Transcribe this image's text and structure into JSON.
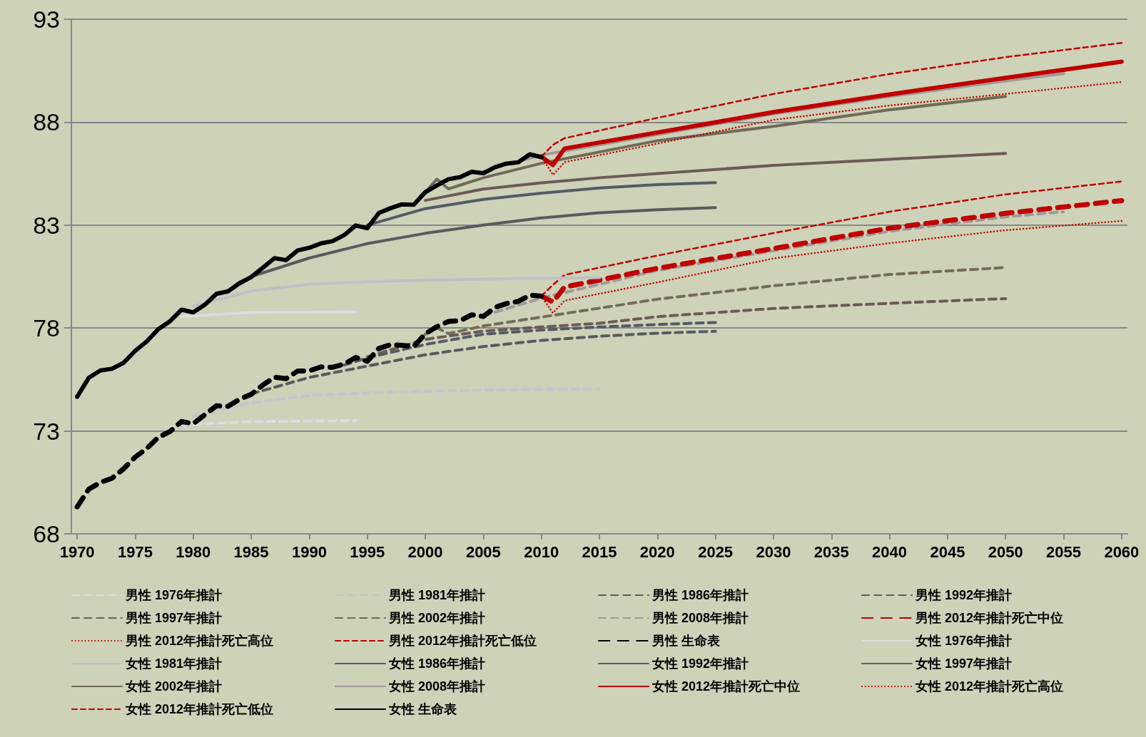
{
  "chart_data": {
    "type": "line",
    "xlim": [
      1969.5,
      2060.5
    ],
    "xticks": [
      1970,
      1975,
      1980,
      1985,
      1990,
      1995,
      2000,
      2005,
      2010,
      2015,
      2020,
      2025,
      2030,
      2035,
      2040,
      2045,
      2050,
      2055,
      2060
    ],
    "ylim": [
      68,
      93
    ],
    "yticks": [
      68,
      73,
      78,
      83,
      88,
      93
    ],
    "grid": "y",
    "legend": "bottom",
    "marker": "none",
    "series": [
      {
        "name": "男性 1976年推計",
        "color": "#dcdcdc",
        "line_style": "dashed",
        "x": [
          1979,
          1985,
          1994
        ],
        "values": [
          73.3,
          73.45,
          73.5
        ]
      },
      {
        "name": "男性 1981年推計",
        "color": "#c6c6ca",
        "line_style": "dashed",
        "x": [
          1980,
          1985,
          1990,
          1995,
          2000,
          2005,
          2010,
          2015
        ],
        "values": [
          73.7,
          74.37,
          74.72,
          74.85,
          74.93,
          74.98,
          75.02,
          75.05
        ]
      },
      {
        "name": "男性 1986年推計",
        "color": "#5a5a5a",
        "line_style": "dashed",
        "x": [
          1985,
          1990,
          1995,
          2000,
          2005,
          2010,
          2015,
          2020,
          2025
        ],
        "values": [
          74.8,
          75.6,
          76.15,
          76.7,
          77.1,
          77.4,
          77.6,
          77.75,
          77.84
        ]
      },
      {
        "name": "男性 1992年推計",
        "color": "#545b63",
        "line_style": "dashed",
        "x": [
          1993,
          1995,
          2000,
          2005,
          2010,
          2015,
          2020,
          2025
        ],
        "values": [
          76.2,
          76.55,
          77.2,
          77.7,
          77.9,
          78.05,
          78.17,
          78.27
        ]
      },
      {
        "name": "男性 1997年推計",
        "color": "#6b5a55",
        "line_style": "dashed",
        "x": [
          1995,
          2000,
          2005,
          2010,
          2015,
          2020,
          2030,
          2040,
          2050
        ],
        "values": [
          76.6,
          77.45,
          77.85,
          78.05,
          78.23,
          78.55,
          78.95,
          79.2,
          79.43
        ]
      },
      {
        "name": "男性 2002年推計",
        "color": "#736c58",
        "line_style": "dashed",
        "x": [
          2000,
          2001,
          2002,
          2005,
          2010,
          2020,
          2030,
          2040,
          2050
        ],
        "values": [
          77.7,
          78.0,
          77.73,
          78.1,
          78.53,
          79.4,
          80.05,
          80.6,
          80.94
        ]
      },
      {
        "name": "男性 2008年推計",
        "color": "#a09898",
        "line_style": "dashed",
        "x": [
          2005,
          2010,
          2020,
          2030,
          2040,
          2050,
          2055
        ],
        "values": [
          78.6,
          79.45,
          80.8,
          81.75,
          82.7,
          83.4,
          83.65
        ]
      },
      {
        "name": "男性 2012年推計死亡中位",
        "color": "#c00000",
        "line_style": "dashed",
        "x": [
          2010,
          2011,
          2012,
          2020,
          2030,
          2040,
          2050,
          2060
        ],
        "values": [
          79.55,
          79.27,
          79.99,
          80.9,
          81.86,
          82.85,
          83.57,
          84.19
        ]
      },
      {
        "name": "男性 2012年推計死亡高位",
        "color": "#c00000",
        "line_style": "dotted",
        "x": [
          2010,
          2011,
          2012,
          2020,
          2030,
          2040,
          2050,
          2060
        ],
        "values": [
          79.55,
          78.73,
          79.33,
          80.22,
          81.38,
          82.12,
          82.75,
          83.2
        ]
      },
      {
        "name": "男性 2012年推計死亡低位",
        "color": "#c00000",
        "line_style": "dashed",
        "x": [
          2010,
          2011,
          2012,
          2020,
          2030,
          2040,
          2050,
          2060
        ],
        "values": [
          79.55,
          80.1,
          80.58,
          81.52,
          82.61,
          83.65,
          84.49,
          85.12
        ]
      },
      {
        "name": "男性 生命表",
        "color": "#000000",
        "line_style": "dashed",
        "x": [
          1970,
          1971,
          1972,
          1973,
          1974,
          1975,
          1976,
          1977,
          1978,
          1979,
          1980,
          1981,
          1982,
          1983,
          1984,
          1985,
          1986,
          1987,
          1988,
          1989,
          1990,
          1991,
          1992,
          1993,
          1994,
          1995,
          1996,
          1997,
          1998,
          1999,
          2000,
          2001,
          2002,
          2003,
          2004,
          2005,
          2006,
          2007,
          2008,
          2009,
          2010
        ],
        "values": [
          69.31,
          70.17,
          70.5,
          70.7,
          71.16,
          71.73,
          72.15,
          72.69,
          72.97,
          73.46,
          73.35,
          73.79,
          74.22,
          74.2,
          74.54,
          74.78,
          75.23,
          75.61,
          75.54,
          75.91,
          75.92,
          76.11,
          76.09,
          76.25,
          76.57,
          76.38,
          77.01,
          77.19,
          77.16,
          77.1,
          77.72,
          78.07,
          78.32,
          78.36,
          78.64,
          78.56,
          79.0,
          79.19,
          79.29,
          79.59,
          79.55
        ]
      },
      {
        "name": "女性 1976年推計",
        "color": "#dcdcdc",
        "line_style": "solid",
        "x": [
          1979,
          1985,
          1994
        ],
        "values": [
          78.55,
          78.76,
          78.78
        ]
      },
      {
        "name": "女性 1981年推計",
        "color": "#c0c0c4",
        "line_style": "solid",
        "x": [
          1980,
          1985,
          1990,
          1995,
          2000,
          2005,
          2010,
          2015
        ],
        "values": [
          79.05,
          79.8,
          80.13,
          80.25,
          80.32,
          80.38,
          80.42,
          80.45
        ]
      },
      {
        "name": "女性 1986年推計",
        "color": "#5a5a5a",
        "line_style": "solid",
        "x": [
          1985,
          1990,
          1995,
          2000,
          2005,
          2010,
          2015,
          2020,
          2025
        ],
        "values": [
          80.5,
          81.4,
          82.1,
          82.6,
          83.0,
          83.35,
          83.6,
          83.75,
          83.85
        ]
      },
      {
        "name": "女性 1992年推計",
        "color": "#545b63",
        "line_style": "solid",
        "x": [
          1995,
          2000,
          2005,
          2010,
          2015,
          2020,
          2025
        ],
        "values": [
          83.0,
          83.8,
          84.25,
          84.55,
          84.8,
          84.97,
          85.06
        ]
      },
      {
        "name": "女性 1997年推計",
        "color": "#6b5a55",
        "line_style": "solid",
        "x": [
          2000,
          2005,
          2010,
          2015,
          2020,
          2030,
          2040,
          2050
        ],
        "values": [
          84.2,
          84.75,
          85.05,
          85.3,
          85.5,
          85.9,
          86.2,
          86.48
        ]
      },
      {
        "name": "女性 2002年推計",
        "color": "#6f6a58",
        "line_style": "solid",
        "x": [
          2000,
          2001,
          2002,
          2005,
          2010,
          2020,
          2030,
          2040,
          2050
        ],
        "values": [
          84.6,
          85.23,
          84.76,
          85.3,
          86.0,
          87.1,
          87.8,
          88.6,
          89.25
        ]
      },
      {
        "name": "女性 2008年推計",
        "color": "#a09898",
        "line_style": "solid",
        "x": [
          2008,
          2010,
          2020,
          2030,
          2040,
          2050,
          2055
        ],
        "values": [
          86.1,
          86.4,
          87.4,
          88.4,
          89.25,
          90.0,
          90.36
        ]
      },
      {
        "name": "女性 2012年推計死亡中位",
        "color": "#c00000",
        "line_style": "solid",
        "x": [
          2010,
          2011,
          2012,
          2020,
          2030,
          2040,
          2050,
          2060
        ],
        "values": [
          86.32,
          85.92,
          86.72,
          87.5,
          88.49,
          89.35,
          90.15,
          90.94
        ]
      },
      {
        "name": "女性 2012年推計死亡高位",
        "color": "#c00000",
        "line_style": "dotted",
        "x": [
          2010,
          2011,
          2012,
          2020,
          2030,
          2040,
          2050,
          2060
        ],
        "values": [
          86.32,
          85.44,
          86.06,
          86.96,
          88.11,
          88.81,
          89.37,
          89.95
        ]
      },
      {
        "name": "女性 2012年推計死亡低位",
        "color": "#c00000",
        "line_style": "dashed",
        "x": [
          2010,
          2011,
          2012,
          2020,
          2030,
          2040,
          2050,
          2060
        ],
        "values": [
          86.32,
          86.9,
          87.22,
          88.21,
          89.37,
          90.34,
          91.16,
          91.85
        ]
      },
      {
        "name": "女性 生命表",
        "color": "#000000",
        "line_style": "solid",
        "x": [
          1970,
          1971,
          1972,
          1973,
          1974,
          1975,
          1976,
          1977,
          1978,
          1979,
          1980,
          1981,
          1982,
          1983,
          1984,
          1985,
          1986,
          1987,
          1988,
          1989,
          1990,
          1991,
          1992,
          1993,
          1994,
          1995,
          1996,
          1997,
          1998,
          1999,
          2000,
          2001,
          2002,
          2003,
          2004,
          2005,
          2006,
          2007,
          2008,
          2009,
          2010
        ],
        "values": [
          74.66,
          75.58,
          75.94,
          76.02,
          76.31,
          76.89,
          77.35,
          77.95,
          78.33,
          78.89,
          78.76,
          79.13,
          79.66,
          79.78,
          80.18,
          80.48,
          80.93,
          81.39,
          81.3,
          81.77,
          81.9,
          82.11,
          82.22,
          82.51,
          82.98,
          82.85,
          83.59,
          83.82,
          84.01,
          83.99,
          84.6,
          84.93,
          85.23,
          85.33,
          85.59,
          85.52,
          85.81,
          85.99,
          86.05,
          86.44,
          86.3
        ]
      }
    ]
  }
}
